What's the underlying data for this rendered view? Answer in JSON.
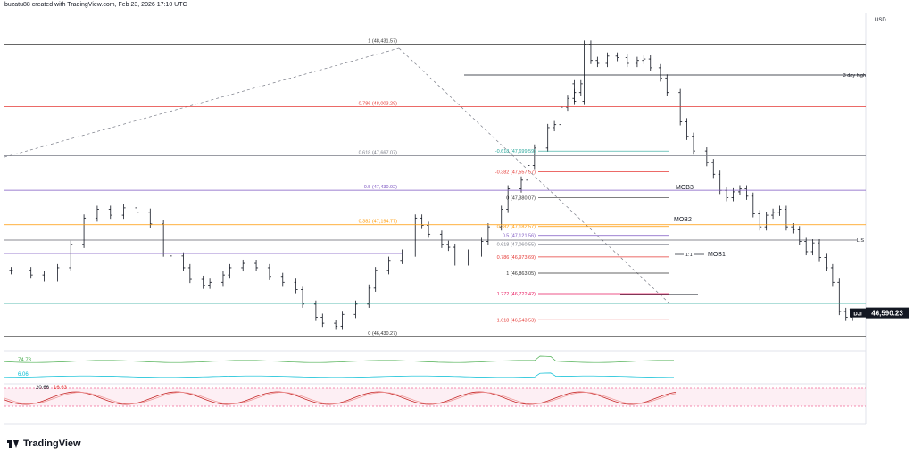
{
  "header": {
    "text": "buzatu88 created with TradingView.com, Feb 23, 2026 17:10 UTC"
  },
  "currency": "USD",
  "brand": {
    "name": "TradingView"
  },
  "symbol": {
    "ticker": "DJI",
    "price_label": "46,590.23"
  },
  "chart_data": {
    "type": "candlestick",
    "price_range": [
      46380,
      48520
    ],
    "path_price": [
      46880,
      46850,
      46830,
      46900,
      47060,
      47240,
      47300,
      47260,
      47310,
      47280,
      47200,
      47000,
      46980,
      46900,
      46820,
      46780,
      46800,
      46850,
      46900,
      46930,
      46900,
      46840,
      46800,
      46750,
      46650,
      46560,
      46520,
      46500,
      46580,
      46650,
      46760,
      46880,
      46950,
      47000,
      47240,
      47190,
      47130,
      47060,
      47040,
      46940,
      47000,
      47080,
      47180,
      47300,
      47440,
      47500,
      47600,
      47720,
      47860,
      47880,
      48000,
      48060,
      48100,
      48160,
      48040,
      48431.57,
      48320,
      48300,
      48350,
      48340,
      48300,
      48320,
      48330,
      48270,
      48200,
      48100,
      47900,
      47800,
      47700,
      47620,
      47540,
      47430,
      47380.07,
      47420,
      47440,
      47390,
      47270,
      47180,
      47260,
      47280,
      47300,
      47180,
      47160,
      47080,
      47010,
      47070,
      46970,
      46900,
      46800,
      46600,
      46560,
      46590.23
    ],
    "path_x": [
      0.01,
      0.04,
      0.06,
      0.08,
      0.1,
      0.12,
      0.14,
      0.16,
      0.18,
      0.2,
      0.22,
      0.24,
      0.25,
      0.27,
      0.28,
      0.3,
      0.31,
      0.33,
      0.34,
      0.36,
      0.38,
      0.4,
      0.42,
      0.44,
      0.45,
      0.47,
      0.48,
      0.5,
      0.51,
      0.53,
      0.55,
      0.56,
      0.58,
      0.6,
      0.62,
      0.63,
      0.64,
      0.66,
      0.67,
      0.68,
      0.7,
      0.72,
      0.73,
      0.75,
      0.76,
      0.78,
      0.79,
      0.8,
      0.82,
      0.83,
      0.84,
      0.85,
      0.86,
      0.87,
      0.86,
      0.875,
      0.885,
      0.895,
      0.91,
      0.925,
      0.94,
      0.955,
      0.965,
      0.975,
      0.99,
      1.0,
      1.02,
      1.03,
      1.04,
      1.06,
      1.07,
      1.08,
      1.09,
      1.1,
      1.11,
      1.12,
      1.13,
      1.14,
      1.15,
      1.16,
      1.17,
      1.18,
      1.19,
      1.2,
      1.21,
      1.22,
      1.23,
      1.24,
      1.25,
      1.26,
      1.27,
      1.28
    ],
    "fib_levels": [
      {
        "label": "1 (48,431.57)",
        "price": 48431.57,
        "color": "#333333"
      },
      {
        "label": "0.786 (48,003.29)",
        "price": 48003.29,
        "color": "#e53935"
      },
      {
        "label": "0.618 (47,667.07)",
        "price": 47667.07,
        "color": "#787b86"
      },
      {
        "label": "0.5 (47,430.92)",
        "price": 47430.92,
        "color": "#7e57c2"
      },
      {
        "label": "0.382 (47,194.77)",
        "price": 47194.77,
        "color": "#ff9800"
      },
      {
        "label": "0 (46,430.27)",
        "price": 46430.27,
        "color": "#333333"
      }
    ],
    "fib_levels_right": [
      {
        "label": "-0.618 (47,699.59)",
        "price": 47699.59,
        "color": "#26a69a"
      },
      {
        "label": "-0.382 (47,557.57)",
        "price": 47557.57,
        "color": "#e53935"
      },
      {
        "label": "0 (47,380.07)",
        "price": 47380.07,
        "color": "#333333"
      },
      {
        "label": "0.382 (47,182.57)",
        "price": 47182.57,
        "color": "#ff9800"
      },
      {
        "label": "0.5 (47,121.56)",
        "price": 47121.56,
        "color": "#7e57c2"
      },
      {
        "label": "0.618 (47,060.55)",
        "price": 47060.55,
        "color": "#787b86"
      },
      {
        "label": "0.786 (46,973.69)",
        "price": 46973.69,
        "color": "#e53935"
      },
      {
        "label": "1 (46,863.05)",
        "price": 46863.05,
        "color": "#333333"
      },
      {
        "label": "1.272 (46,722.42)",
        "price": 46722.42,
        "color": "#e91e63"
      },
      {
        "label": "1.618 (46,543.53)",
        "price": 46543.53,
        "color": "#e53935"
      }
    ],
    "annotations": {
      "three_day_high": "3 day high",
      "mob3": "MOB3",
      "mob2": "MOB2",
      "mob1": "MOB1",
      "ratio": "1:1",
      "lis": "LIS",
      "lower_label": "1.618"
    },
    "indicator1": {
      "upper_value": "74.78",
      "lower_value": "6.06"
    },
    "indicator2": {
      "value_a": "20.66",
      "value_b": "16.63"
    }
  }
}
